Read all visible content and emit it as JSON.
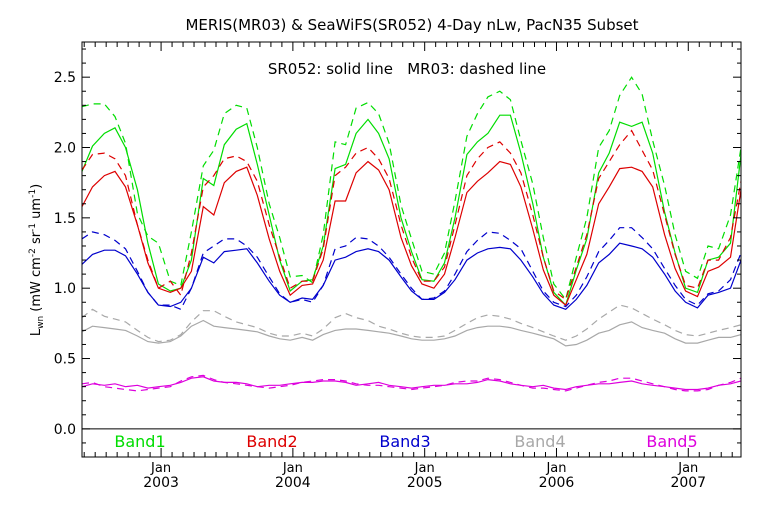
{
  "chart_data": {
    "type": "line",
    "title": "MERIS(MR03) & SeaWiFS(SR052) 4-Day nLw, PacN35 Subset",
    "annotation": "SR052: solid line   MR03: dashed line",
    "ylabel_main": "L",
    "ylabel_sub": "wn",
    "ylabel_rest": " (mW cm",
    "ylabel_sup1": "-2",
    "ylabel_mid": " sr",
    "ylabel_sup2": "-1",
    "ylabel_end": " um",
    "ylabel_sup3": "-1",
    "ylabel_close": ")",
    "xlim": [
      2002.4,
      2007.4
    ],
    "ylim": [
      -0.2,
      2.75
    ],
    "yticks": [
      0.0,
      0.5,
      1.0,
      1.5,
      2.0,
      2.5
    ],
    "ytick_labels": [
      "0.0",
      "0.5",
      "1.0",
      "1.5",
      "2.0",
      "2.5"
    ],
    "xticks": [
      {
        "x": 2003.0,
        "month": "Jan",
        "year": "2003"
      },
      {
        "x": 2004.0,
        "month": "Jan",
        "year": "2004"
      },
      {
        "x": 2005.0,
        "month": "Jan",
        "year": "2005"
      },
      {
        "x": 2006.0,
        "month": "Jan",
        "year": "2006"
      },
      {
        "x": 2007.0,
        "month": "Jan",
        "year": "2007"
      }
    ],
    "zero_line": 0.0,
    "legend_placement": "bottom",
    "line_styles": {
      "SR052": "solid",
      "MR03": "dashed"
    },
    "series": [
      {
        "name": "Band1",
        "color": "#00dd00",
        "x": [
          2002.4,
          2002.48,
          2002.57,
          2002.65,
          2002.73,
          2002.82,
          2002.9,
          2002.98,
          2003.07,
          2003.15,
          2003.23,
          2003.32,
          2003.4,
          2003.48,
          2003.57,
          2003.65,
          2003.73,
          2003.82,
          2003.9,
          2003.98,
          2004.07,
          2004.15,
          2004.23,
          2004.32,
          2004.4,
          2004.48,
          2004.57,
          2004.65,
          2004.73,
          2004.82,
          2004.9,
          2004.98,
          2005.07,
          2005.15,
          2005.23,
          2005.32,
          2005.4,
          2005.48,
          2005.57,
          2005.65,
          2005.73,
          2005.82,
          2005.9,
          2005.98,
          2006.07,
          2006.15,
          2006.23,
          2006.32,
          2006.4,
          2006.48,
          2006.57,
          2006.65,
          2006.73,
          2006.82,
          2006.9,
          2006.98,
          2007.07,
          2007.15,
          2007.23,
          2007.32,
          2007.4
        ],
        "SR052": [
          1.83,
          2.01,
          2.1,
          2.14,
          2.0,
          1.7,
          1.32,
          1.03,
          0.98,
          1.0,
          1.2,
          1.78,
          1.73,
          2.02,
          2.13,
          2.17,
          1.88,
          1.52,
          1.2,
          0.98,
          1.05,
          1.06,
          1.3,
          1.85,
          1.88,
          2.1,
          2.2,
          2.1,
          1.92,
          1.5,
          1.26,
          1.06,
          1.05,
          1.18,
          1.5,
          1.95,
          2.04,
          2.1,
          2.23,
          2.23,
          1.96,
          1.6,
          1.22,
          0.97,
          0.88,
          1.13,
          1.35,
          1.82,
          1.96,
          2.18,
          2.15,
          2.18,
          1.96,
          1.54,
          1.25,
          1.0,
          0.97,
          1.2,
          1.22,
          1.32,
          1.95
        ],
        "MR03": [
          2.29,
          2.31,
          2.31,
          2.22,
          2.03,
          1.53,
          1.37,
          1.32,
          1.05,
          1.02,
          1.4,
          1.87,
          1.98,
          2.24,
          2.3,
          2.28,
          2.0,
          1.6,
          1.36,
          1.08,
          1.09,
          1.04,
          1.38,
          2.04,
          2.02,
          2.28,
          2.32,
          2.24,
          2.03,
          1.59,
          1.35,
          1.12,
          1.1,
          1.25,
          1.62,
          2.08,
          2.24,
          2.36,
          2.4,
          2.34,
          2.05,
          1.74,
          1.36,
          1.03,
          0.92,
          1.22,
          1.5,
          2.0,
          2.12,
          2.37,
          2.5,
          2.38,
          2.05,
          1.73,
          1.38,
          1.12,
          1.07,
          1.3,
          1.28,
          1.52,
          2.0
        ]
      },
      {
        "name": "Band2",
        "color": "#dd0000",
        "x": [
          2002.4,
          2002.48,
          2002.57,
          2002.65,
          2002.73,
          2002.82,
          2002.9,
          2002.98,
          2003.07,
          2003.15,
          2003.23,
          2003.32,
          2003.4,
          2003.48,
          2003.57,
          2003.65,
          2003.73,
          2003.82,
          2003.9,
          2003.98,
          2004.07,
          2004.15,
          2004.23,
          2004.32,
          2004.4,
          2004.48,
          2004.57,
          2004.65,
          2004.73,
          2004.82,
          2004.9,
          2004.98,
          2005.07,
          2005.15,
          2005.23,
          2005.32,
          2005.4,
          2005.48,
          2005.57,
          2005.65,
          2005.73,
          2005.82,
          2005.9,
          2005.98,
          2006.07,
          2006.15,
          2006.23,
          2006.32,
          2006.4,
          2006.48,
          2006.57,
          2006.65,
          2006.73,
          2006.82,
          2006.9,
          2006.98,
          2007.07,
          2007.15,
          2007.23,
          2007.32,
          2007.4
        ],
        "SR052": [
          1.58,
          1.72,
          1.8,
          1.83,
          1.72,
          1.45,
          1.18,
          1.0,
          0.97,
          1.0,
          1.12,
          1.58,
          1.52,
          1.75,
          1.83,
          1.86,
          1.66,
          1.35,
          1.12,
          0.95,
          1.02,
          1.03,
          1.2,
          1.62,
          1.62,
          1.82,
          1.9,
          1.84,
          1.7,
          1.36,
          1.16,
          1.03,
          1.0,
          1.1,
          1.36,
          1.68,
          1.76,
          1.82,
          1.9,
          1.88,
          1.72,
          1.42,
          1.13,
          0.95,
          0.88,
          1.06,
          1.24,
          1.6,
          1.72,
          1.85,
          1.86,
          1.83,
          1.72,
          1.38,
          1.14,
          0.98,
          0.94,
          1.12,
          1.15,
          1.22,
          1.7
        ],
        "MR03": [
          1.84,
          1.95,
          1.96,
          1.92,
          1.8,
          1.45,
          1.2,
          1.0,
          1.05,
          0.95,
          1.25,
          1.72,
          1.8,
          1.92,
          1.94,
          1.9,
          1.76,
          1.45,
          1.22,
          1.0,
          1.05,
          1.05,
          1.28,
          1.8,
          1.86,
          1.96,
          2.0,
          1.92,
          1.78,
          1.45,
          1.22,
          1.05,
          1.05,
          1.15,
          1.45,
          1.8,
          1.92,
          2.0,
          2.04,
          1.96,
          1.82,
          1.52,
          1.22,
          0.98,
          0.92,
          1.15,
          1.38,
          1.78,
          1.9,
          2.02,
          2.12,
          1.98,
          1.84,
          1.52,
          1.24,
          1.02,
          1.0,
          1.2,
          1.2,
          1.36,
          1.76
        ]
      },
      {
        "name": "Band3",
        "color": "#0000cc",
        "x": [
          2002.4,
          2002.48,
          2002.57,
          2002.65,
          2002.73,
          2002.82,
          2002.9,
          2002.98,
          2003.07,
          2003.15,
          2003.23,
          2003.32,
          2003.4,
          2003.48,
          2003.57,
          2003.65,
          2003.73,
          2003.82,
          2003.9,
          2003.98,
          2004.07,
          2004.15,
          2004.23,
          2004.32,
          2004.4,
          2004.48,
          2004.57,
          2004.65,
          2004.73,
          2004.82,
          2004.9,
          2004.98,
          2005.07,
          2005.15,
          2005.23,
          2005.32,
          2005.4,
          2005.48,
          2005.57,
          2005.65,
          2005.73,
          2005.82,
          2005.9,
          2005.98,
          2006.07,
          2006.15,
          2006.23,
          2006.32,
          2006.4,
          2006.48,
          2006.57,
          2006.65,
          2006.73,
          2006.82,
          2006.9,
          2006.98,
          2007.07,
          2007.15,
          2007.23,
          2007.32,
          2007.4
        ],
        "SR052": [
          1.17,
          1.24,
          1.27,
          1.27,
          1.23,
          1.1,
          0.97,
          0.88,
          0.87,
          0.9,
          1.0,
          1.22,
          1.18,
          1.26,
          1.27,
          1.28,
          1.18,
          1.05,
          0.95,
          0.9,
          0.93,
          0.92,
          1.02,
          1.2,
          1.22,
          1.26,
          1.28,
          1.26,
          1.2,
          1.08,
          0.98,
          0.92,
          0.92,
          0.97,
          1.06,
          1.2,
          1.25,
          1.28,
          1.29,
          1.28,
          1.2,
          1.08,
          0.96,
          0.88,
          0.85,
          0.92,
          1.02,
          1.18,
          1.24,
          1.32,
          1.3,
          1.28,
          1.22,
          1.1,
          0.98,
          0.9,
          0.86,
          0.95,
          0.97,
          1.0,
          1.2
        ],
        "MR03": [
          1.35,
          1.4,
          1.38,
          1.34,
          1.28,
          1.12,
          0.97,
          0.88,
          0.88,
          0.85,
          1.0,
          1.25,
          1.3,
          1.35,
          1.35,
          1.3,
          1.22,
          1.08,
          0.96,
          0.9,
          0.92,
          0.9,
          1.02,
          1.28,
          1.3,
          1.36,
          1.35,
          1.3,
          1.22,
          1.1,
          1.0,
          0.92,
          0.93,
          0.98,
          1.1,
          1.26,
          1.34,
          1.4,
          1.39,
          1.34,
          1.28,
          1.12,
          0.98,
          0.9,
          0.87,
          0.95,
          1.08,
          1.26,
          1.34,
          1.43,
          1.43,
          1.36,
          1.28,
          1.14,
          1.02,
          0.92,
          0.88,
          0.96,
          0.98,
          1.06,
          1.25
        ]
      },
      {
        "name": "Band4",
        "color": "#a8a8a8",
        "x": [
          2002.4,
          2002.48,
          2002.57,
          2002.65,
          2002.73,
          2002.82,
          2002.9,
          2002.98,
          2003.07,
          2003.15,
          2003.23,
          2003.32,
          2003.4,
          2003.48,
          2003.57,
          2003.65,
          2003.73,
          2003.82,
          2003.9,
          2003.98,
          2004.07,
          2004.15,
          2004.23,
          2004.32,
          2004.4,
          2004.48,
          2004.57,
          2004.65,
          2004.73,
          2004.82,
          2004.9,
          2004.98,
          2005.07,
          2005.15,
          2005.23,
          2005.32,
          2005.4,
          2005.48,
          2005.57,
          2005.65,
          2005.73,
          2005.82,
          2005.9,
          2005.98,
          2006.07,
          2006.15,
          2006.23,
          2006.32,
          2006.4,
          2006.48,
          2006.57,
          2006.65,
          2006.73,
          2006.82,
          2006.9,
          2006.98,
          2007.07,
          2007.15,
          2007.23,
          2007.32,
          2007.4
        ],
        "SR052": [
          0.69,
          0.73,
          0.72,
          0.71,
          0.7,
          0.66,
          0.62,
          0.61,
          0.62,
          0.66,
          0.73,
          0.77,
          0.73,
          0.72,
          0.71,
          0.7,
          0.69,
          0.66,
          0.64,
          0.63,
          0.65,
          0.63,
          0.67,
          0.7,
          0.71,
          0.71,
          0.7,
          0.69,
          0.68,
          0.66,
          0.64,
          0.63,
          0.63,
          0.64,
          0.66,
          0.7,
          0.72,
          0.73,
          0.73,
          0.72,
          0.7,
          0.68,
          0.66,
          0.64,
          0.59,
          0.6,
          0.63,
          0.68,
          0.7,
          0.74,
          0.76,
          0.72,
          0.7,
          0.68,
          0.64,
          0.61,
          0.61,
          0.63,
          0.65,
          0.65,
          0.67
        ],
        "MR03": [
          0.79,
          0.85,
          0.8,
          0.78,
          0.76,
          0.7,
          0.65,
          0.62,
          0.63,
          0.67,
          0.76,
          0.84,
          0.84,
          0.8,
          0.76,
          0.74,
          0.72,
          0.68,
          0.66,
          0.66,
          0.68,
          0.66,
          0.71,
          0.79,
          0.82,
          0.79,
          0.77,
          0.73,
          0.71,
          0.68,
          0.66,
          0.65,
          0.65,
          0.66,
          0.7,
          0.75,
          0.79,
          0.81,
          0.8,
          0.78,
          0.75,
          0.72,
          0.69,
          0.66,
          0.63,
          0.66,
          0.71,
          0.78,
          0.83,
          0.88,
          0.86,
          0.82,
          0.78,
          0.74,
          0.7,
          0.67,
          0.66,
          0.68,
          0.7,
          0.72,
          0.74
        ]
      },
      {
        "name": "Band5",
        "color": "#dd00dd",
        "x": [
          2002.4,
          2002.48,
          2002.57,
          2002.65,
          2002.73,
          2002.82,
          2002.9,
          2002.98,
          2003.07,
          2003.15,
          2003.23,
          2003.32,
          2003.4,
          2003.48,
          2003.57,
          2003.65,
          2003.73,
          2003.82,
          2003.9,
          2003.98,
          2004.07,
          2004.15,
          2004.23,
          2004.32,
          2004.4,
          2004.48,
          2004.57,
          2004.65,
          2004.73,
          2004.82,
          2004.9,
          2004.98,
          2005.07,
          2005.15,
          2005.23,
          2005.32,
          2005.4,
          2005.48,
          2005.57,
          2005.65,
          2005.73,
          2005.82,
          2005.9,
          2005.98,
          2006.07,
          2006.15,
          2006.23,
          2006.32,
          2006.4,
          2006.48,
          2006.57,
          2006.65,
          2006.73,
          2006.82,
          2006.9,
          2006.98,
          2007.07,
          2007.15,
          2007.23,
          2007.32,
          2007.4
        ],
        "SR052": [
          0.3,
          0.32,
          0.31,
          0.32,
          0.3,
          0.31,
          0.29,
          0.3,
          0.31,
          0.33,
          0.36,
          0.37,
          0.34,
          0.33,
          0.33,
          0.32,
          0.3,
          0.31,
          0.31,
          0.32,
          0.33,
          0.33,
          0.34,
          0.34,
          0.33,
          0.31,
          0.32,
          0.33,
          0.31,
          0.3,
          0.29,
          0.3,
          0.31,
          0.31,
          0.32,
          0.32,
          0.33,
          0.35,
          0.34,
          0.32,
          0.31,
          0.3,
          0.31,
          0.29,
          0.28,
          0.3,
          0.31,
          0.32,
          0.32,
          0.33,
          0.34,
          0.32,
          0.31,
          0.3,
          0.29,
          0.28,
          0.28,
          0.29,
          0.31,
          0.32,
          0.34
        ],
        "MR03": [
          0.32,
          0.33,
          0.3,
          0.29,
          0.28,
          0.27,
          0.28,
          0.29,
          0.3,
          0.34,
          0.37,
          0.38,
          0.35,
          0.33,
          0.32,
          0.31,
          0.3,
          0.29,
          0.3,
          0.31,
          0.33,
          0.34,
          0.35,
          0.35,
          0.34,
          0.32,
          0.31,
          0.31,
          0.3,
          0.29,
          0.28,
          0.29,
          0.3,
          0.31,
          0.33,
          0.34,
          0.34,
          0.36,
          0.35,
          0.33,
          0.31,
          0.29,
          0.29,
          0.28,
          0.27,
          0.29,
          0.31,
          0.33,
          0.34,
          0.36,
          0.36,
          0.34,
          0.32,
          0.3,
          0.28,
          0.27,
          0.27,
          0.28,
          0.31,
          0.33,
          0.36
        ]
      }
    ]
  }
}
